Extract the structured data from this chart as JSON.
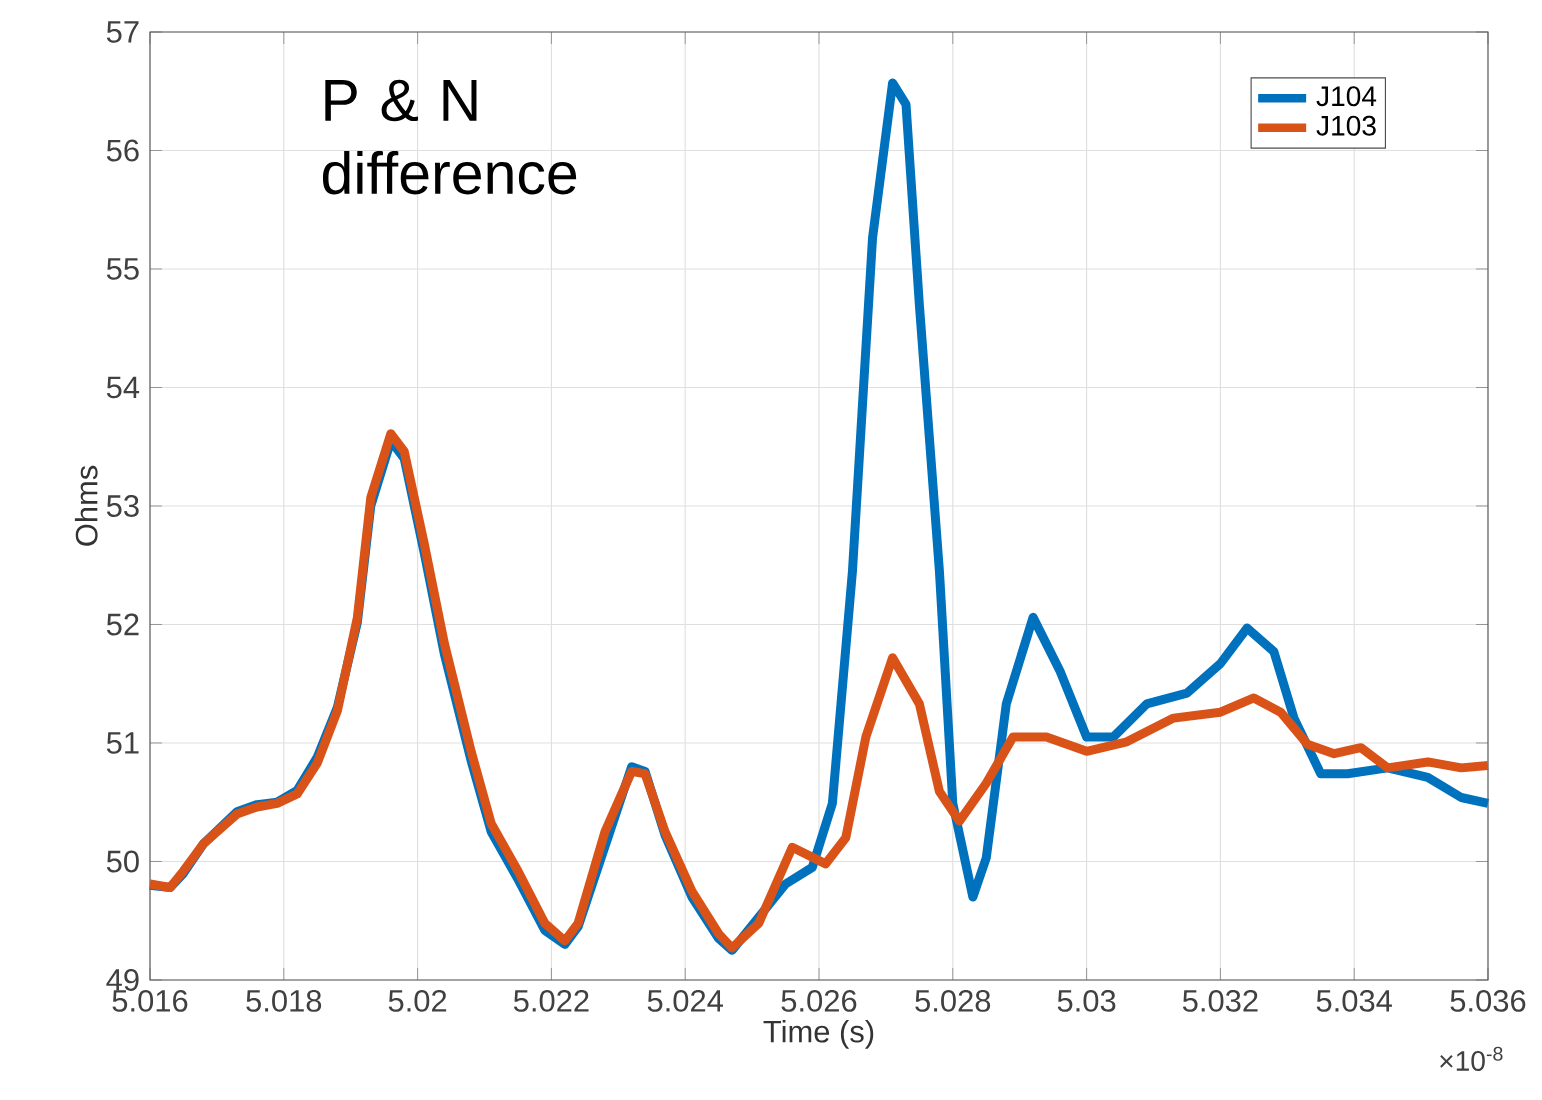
{
  "chart_data": {
    "type": "line",
    "xlabel": "Time (s)",
    "ylabel": "Ohms",
    "annotations": [
      "P & N difference",
      "×10$^{-8}$"
    ],
    "xlim": [
      5.016,
      5.036
    ],
    "ylim": [
      49,
      57
    ],
    "xticks": [
      5.016,
      5.018,
      5.02,
      5.022,
      5.024,
      5.026,
      5.028,
      5.03,
      5.032,
      5.034,
      5.036
    ],
    "yticks": [
      49,
      50,
      51,
      52,
      53,
      54,
      55,
      56,
      57
    ],
    "grid": true,
    "legend": "top right",
    "line_style": "solid",
    "marker": "none",
    "series": [
      {
        "name": "J104",
        "color": "#0072bd",
        "x": [
          5.016,
          5.0163,
          5.0165,
          5.0168,
          5.0173,
          5.0176,
          5.0179,
          5.0182,
          5.0185,
          5.0188,
          5.0191,
          5.0193,
          5.0196,
          5.0198,
          5.0201,
          5.0204,
          5.0208,
          5.0211,
          5.0215,
          5.0219,
          5.0222,
          5.0224,
          5.0228,
          5.0232,
          5.0234,
          5.0237,
          5.0241,
          5.0245,
          5.0247,
          5.0251,
          5.0255,
          5.0259,
          5.0262,
          5.0265,
          5.0268,
          5.0271,
          5.0273,
          5.0275,
          5.0278,
          5.028,
          5.0283,
          5.0285,
          5.0288,
          5.0292,
          5.0296,
          5.03,
          5.0304,
          5.0309,
          5.0315,
          5.032,
          5.0324,
          5.0328,
          5.0331,
          5.0335,
          5.0339,
          5.0345,
          5.0351,
          5.0356,
          5.036
        ],
        "values": [
          49.8,
          49.78,
          49.9,
          50.15,
          50.42,
          50.48,
          50.5,
          50.6,
          50.88,
          51.3,
          52.02,
          53.0,
          53.55,
          53.4,
          52.6,
          51.75,
          50.85,
          50.25,
          49.85,
          49.42,
          49.3,
          49.45,
          null,
          50.8,
          50.76,
          50.22,
          49.7,
          49.35,
          49.25,
          49.53,
          49.81,
          49.95,
          50.49,
          52.45,
          55.26,
          56.57,
          56.39,
          54.7,
          52.45,
          50.49,
          49.7,
          50.03,
          51.33,
          52.06,
          51.61,
          51.05,
          51.05,
          51.33,
          51.42,
          51.67,
          51.97,
          51.77,
          51.21,
          50.74,
          50.74,
          50.79,
          50.71,
          50.54,
          50.49
        ]
      },
      {
        "name": "J103",
        "color": "#d95319",
        "x": [
          5.016,
          5.0163,
          5.0165,
          5.0168,
          5.0173,
          5.0176,
          5.0179,
          5.0182,
          5.0185,
          5.0188,
          5.0191,
          5.0193,
          5.0196,
          5.0198,
          5.0201,
          5.0204,
          5.0208,
          5.0211,
          5.0215,
          5.0219,
          5.0222,
          5.0224,
          5.0228,
          5.0232,
          5.0234,
          5.0237,
          5.0241,
          5.0245,
          5.0247,
          5.0251,
          5.0256,
          5.0261,
          5.0264,
          5.0267,
          5.0271,
          5.0275,
          5.0278,
          5.0281,
          5.0285,
          5.0289,
          5.0294,
          5.03,
          5.0306,
          5.0313,
          5.032,
          5.0325,
          5.0329,
          5.0333,
          5.0337,
          5.0341,
          5.0345,
          5.0351,
          5.0356,
          5.036
        ],
        "values": [
          49.81,
          49.78,
          49.92,
          50.15,
          50.4,
          50.46,
          50.49,
          50.57,
          50.83,
          51.27,
          52.06,
          53.07,
          53.61,
          53.46,
          52.68,
          51.84,
          50.93,
          50.32,
          49.92,
          49.48,
          49.33,
          49.48,
          50.25,
          50.76,
          50.74,
          50.25,
          49.75,
          49.39,
          49.27,
          49.48,
          50.12,
          49.98,
          50.2,
          51.05,
          51.72,
          51.33,
          50.59,
          50.34,
          50.66,
          51.05,
          51.05,
          50.93,
          51.01,
          51.21,
          51.26,
          51.38,
          51.26,
          50.99,
          50.91,
          50.96,
          50.79,
          50.84,
          50.79,
          50.81
        ]
      }
    ]
  }
}
